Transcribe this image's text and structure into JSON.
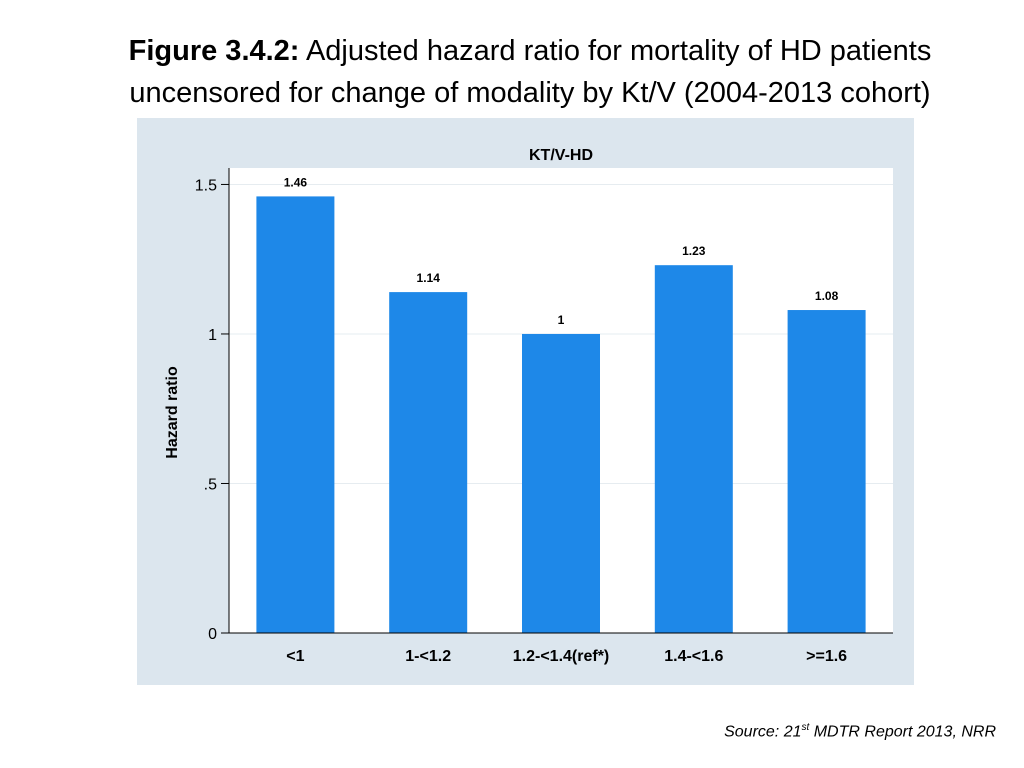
{
  "figure": {
    "label": "Figure 3.4.2:",
    "caption_line1": "Adjusted hazard ratio for mortality of HD patients",
    "caption_line2": "uncensored for change of modality by Kt/V (2004-2013 cohort)"
  },
  "source": {
    "prefix": "Source: 21",
    "sup": "st",
    "suffix": " MDTR Report 2013, NRR"
  },
  "colors": {
    "bar": "#1e88e8",
    "panel": "#dce6ee",
    "plot": "#ffffff"
  },
  "chart_data": {
    "type": "bar",
    "title": "KT/V-HD",
    "ylabel": "Hazard ratio",
    "xlabel": "",
    "categories": [
      "<1",
      "1-<1.2",
      "1.2-<1.4(ref*)",
      "1.4-<1.6",
      ">=1.6"
    ],
    "values": [
      1.46,
      1.14,
      1,
      1.23,
      1.08
    ],
    "value_labels": [
      "1.46",
      "1.14",
      "1",
      "1.23",
      "1.08"
    ],
    "ylim": [
      0,
      1.5
    ],
    "yticks": [
      0,
      0.5,
      1,
      1.5
    ],
    "ytick_labels": [
      "0",
      ".5",
      "1",
      "1.5"
    ],
    "grid": true,
    "legend": "none"
  }
}
